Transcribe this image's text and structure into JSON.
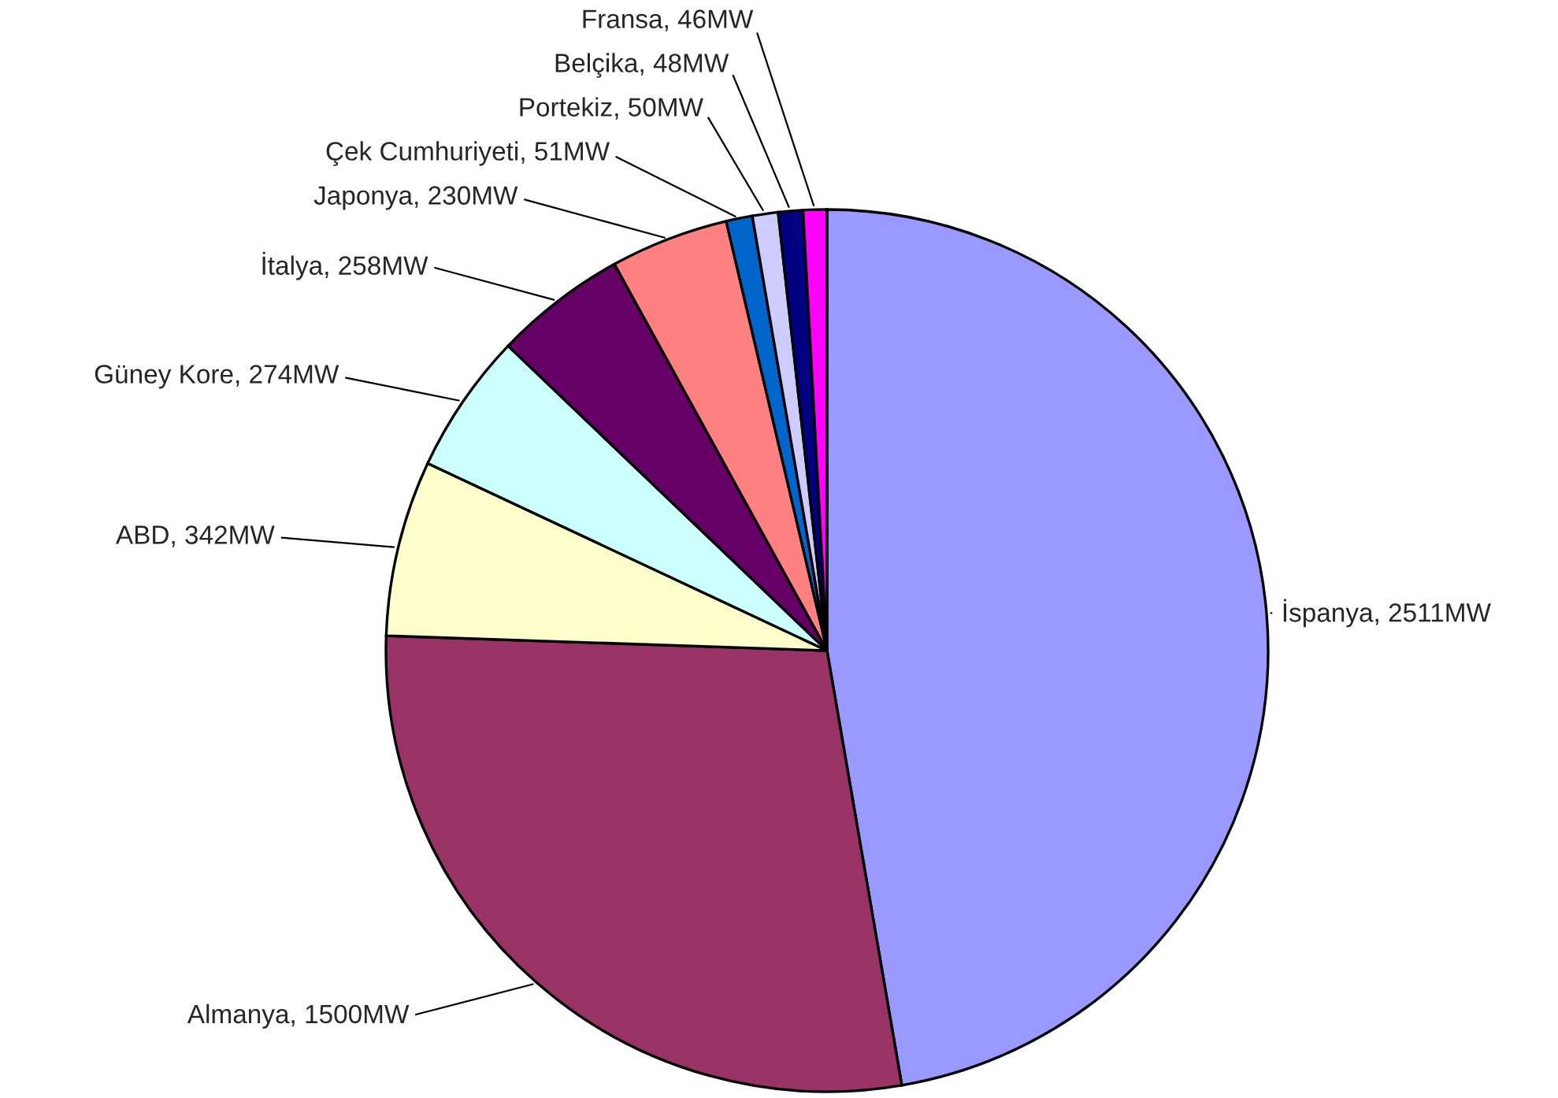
{
  "chart_data": {
    "type": "pie",
    "categories": [
      "İspanya",
      "Almanya",
      "ABD",
      "Güney Kore",
      "İtalya",
      "Japonya",
      "Çek Cumhuriyeti",
      "Portekiz",
      "Belçika",
      "Fransa"
    ],
    "values": [
      2511,
      1500,
      342,
      274,
      258,
      230,
      51,
      50,
      48,
      46
    ],
    "colors": [
      "#9999ff",
      "#993366",
      "#ffffcc",
      "#ccffff",
      "#660066",
      "#ff8080",
      "#0066cc",
      "#ccccff",
      "#000080",
      "#ff00ff"
    ],
    "value_labels": [
      "2511MW",
      "1500MW",
      "342MW",
      "274MW",
      "258MW",
      "230MW",
      "51MW",
      "50MW",
      "48MW",
      "46MW"
    ]
  }
}
